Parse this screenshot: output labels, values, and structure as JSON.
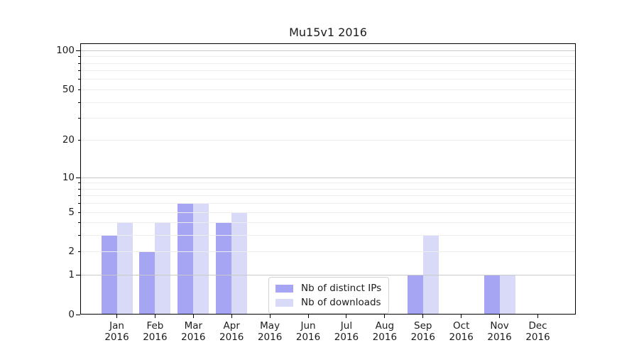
{
  "chart_data": {
    "type": "bar",
    "title": "Mu15v1 2016",
    "categories": [
      "Jan",
      "Feb",
      "Mar",
      "Apr",
      "May",
      "Jun",
      "Jul",
      "Aug",
      "Sep",
      "Oct",
      "Nov",
      "Dec"
    ],
    "year_label": "2016",
    "series": [
      {
        "name": "Nb of distinct IPs",
        "color": "#a5a5f3",
        "values": [
          3,
          2,
          6,
          4,
          0,
          0,
          0,
          0,
          1,
          0,
          1,
          0
        ]
      },
      {
        "name": "Nb of downloads",
        "color": "#d9d9f8",
        "values": [
          4,
          4,
          6,
          5,
          0,
          0,
          0,
          0,
          3,
          0,
          1,
          0
        ]
      }
    ],
    "xlabel": "",
    "ylabel": "",
    "yscale": "log1p",
    "ylim": [
      0,
      113
    ],
    "yticks": [
      0,
      1,
      2,
      5,
      10,
      20,
      50,
      100
    ],
    "major_ticks": [
      0,
      1,
      10,
      100
    ],
    "minor_ticks": [
      2,
      3,
      4,
      5,
      6,
      7,
      8,
      9,
      20,
      30,
      40,
      50,
      60,
      70,
      80,
      90
    ],
    "grid": "on",
    "grid_above_bars": true,
    "major_grid_color": "#c9c9c9",
    "minor_grid_color": "#ededed",
    "legend_position": "lower center"
  }
}
